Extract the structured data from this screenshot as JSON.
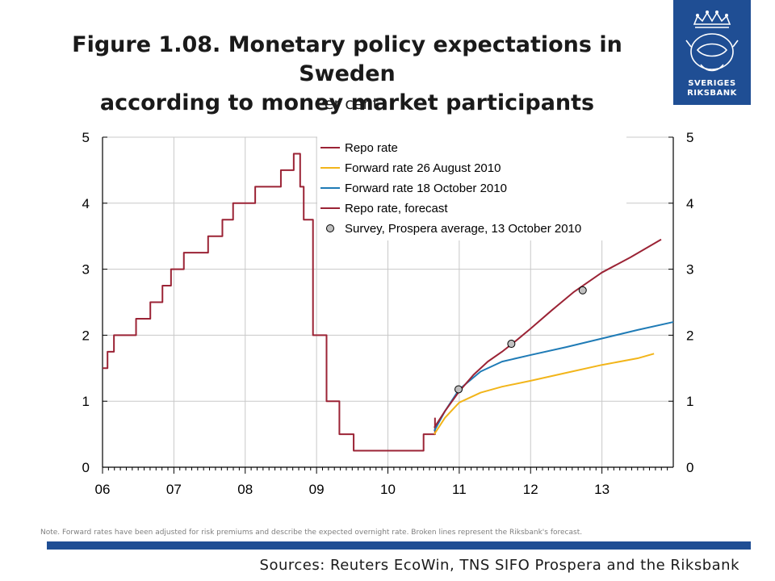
{
  "header": {
    "title_line1": "Figure 1.08. Monetary policy expectations in Sweden",
    "title_line2": "according to money market participants",
    "subtitle": "Per cent"
  },
  "logo": {
    "line1": "SVERIGES",
    "line2": "RIKSBANK"
  },
  "footer": {
    "note": "Note. Forward rates have been adjusted for risk premiums and describe the expected overnight rate. Broken lines represent the Riksbank's forecast.",
    "sources": "Sources: Reuters EcoWin, TNS SIFO Prospera and the Riksbank"
  },
  "colors": {
    "repo": "#9b2335",
    "fwd_aug": "#f2b51a",
    "fwd_oct": "#1f7bb6",
    "accent": "#1f4e94"
  },
  "chart_data": {
    "type": "line",
    "xlabel": "",
    "ylabel": "",
    "xlim": [
      2006.0,
      2014.0
    ],
    "ylim": [
      0,
      5
    ],
    "x_ticks": [
      {
        "x": 2006,
        "label": "06"
      },
      {
        "x": 2007,
        "label": "07"
      },
      {
        "x": 2008,
        "label": "08"
      },
      {
        "x": 2009,
        "label": "09"
      },
      {
        "x": 2010,
        "label": "10"
      },
      {
        "x": 2011,
        "label": "11"
      },
      {
        "x": 2012,
        "label": "12"
      },
      {
        "x": 2013,
        "label": "13"
      }
    ],
    "y_ticks": [
      0,
      1,
      2,
      3,
      4,
      5
    ],
    "grid": true,
    "legend": "top-right",
    "series": [
      {
        "name": "Repo rate",
        "style": "step",
        "color_key": "repo",
        "points": [
          [
            2006.0,
            1.5
          ],
          [
            2006.07,
            1.75
          ],
          [
            2006.16,
            2.0
          ],
          [
            2006.47,
            2.25
          ],
          [
            2006.67,
            2.5
          ],
          [
            2006.84,
            2.75
          ],
          [
            2006.96,
            3.0
          ],
          [
            2007.14,
            3.25
          ],
          [
            2007.48,
            3.5
          ],
          [
            2007.68,
            3.75
          ],
          [
            2007.83,
            4.0
          ],
          [
            2008.14,
            4.25
          ],
          [
            2008.5,
            4.5
          ],
          [
            2008.68,
            4.75
          ],
          [
            2008.77,
            4.25
          ],
          [
            2008.82,
            3.75
          ],
          [
            2008.95,
            2.0
          ],
          [
            2009.14,
            1.0
          ],
          [
            2009.32,
            0.5
          ],
          [
            2009.52,
            0.25
          ],
          [
            2010.5,
            0.5
          ],
          [
            2010.66,
            0.75
          ]
        ]
      },
      {
        "name": "Forward rate 26 August 2010",
        "color_key": "fwd_aug",
        "points": [
          [
            2010.65,
            0.5
          ],
          [
            2010.8,
            0.75
          ],
          [
            2011.0,
            0.98
          ],
          [
            2011.3,
            1.13
          ],
          [
            2011.6,
            1.22
          ],
          [
            2012.0,
            1.31
          ],
          [
            2012.5,
            1.43
          ],
          [
            2013.0,
            1.55
          ],
          [
            2013.5,
            1.65
          ],
          [
            2013.73,
            1.72
          ]
        ]
      },
      {
        "name": "Forward rate 18 October 2010",
        "color_key": "fwd_oct",
        "points": [
          [
            2010.65,
            0.55
          ],
          [
            2010.8,
            0.85
          ],
          [
            2011.0,
            1.18
          ],
          [
            2011.3,
            1.45
          ],
          [
            2011.6,
            1.6
          ],
          [
            2012.0,
            1.7
          ],
          [
            2012.5,
            1.82
          ],
          [
            2013.0,
            1.95
          ],
          [
            2013.5,
            2.08
          ],
          [
            2014.0,
            2.2
          ]
        ]
      },
      {
        "name": "Repo rate, forecast",
        "color_key": "repo",
        "points": [
          [
            2010.65,
            0.6
          ],
          [
            2010.8,
            0.85
          ],
          [
            2011.0,
            1.15
          ],
          [
            2011.2,
            1.4
          ],
          [
            2011.4,
            1.6
          ],
          [
            2011.6,
            1.75
          ],
          [
            2011.8,
            1.92
          ],
          [
            2012.0,
            2.1
          ],
          [
            2012.3,
            2.38
          ],
          [
            2012.6,
            2.65
          ],
          [
            2013.0,
            2.95
          ],
          [
            2013.4,
            3.18
          ],
          [
            2013.83,
            3.45
          ]
        ]
      },
      {
        "name": "Survey, Prospera average, 13 October 2010",
        "style": "marker",
        "points": [
          [
            2010.99,
            1.18
          ],
          [
            2011.73,
            1.87
          ],
          [
            2012.73,
            2.68
          ]
        ]
      }
    ]
  }
}
